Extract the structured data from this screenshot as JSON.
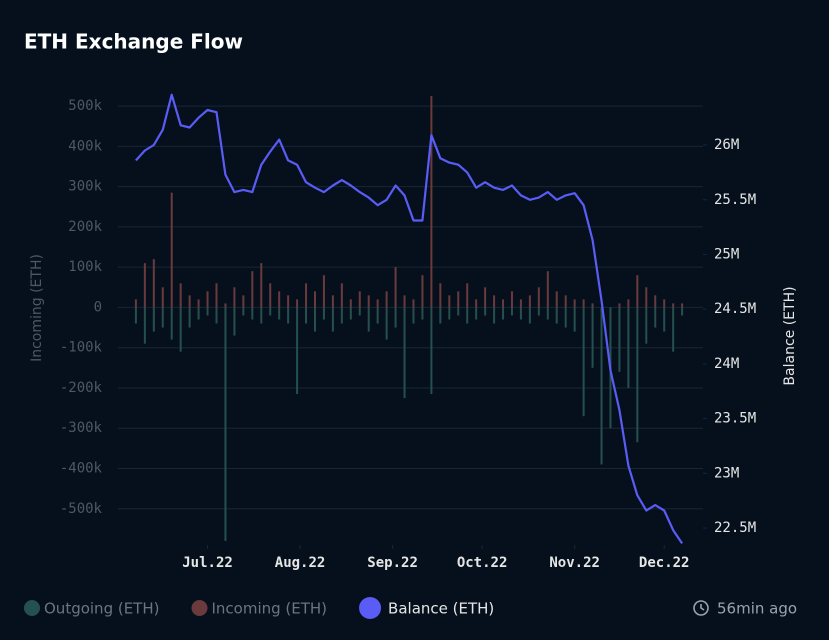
{
  "chart_data": {
    "type": "bar",
    "title": "ETH Exchange Flow",
    "y_label": "Incoming (ETH)",
    "y2_label": "Balance (ETH)",
    "updated": "56min ago",
    "x": [
      6,
      9,
      12,
      15,
      18,
      21,
      24,
      27,
      30,
      33,
      36,
      39,
      42,
      45,
      48,
      51,
      54,
      57,
      60,
      63,
      66,
      69,
      72,
      75,
      78,
      81,
      84,
      87,
      90,
      93,
      96,
      99,
      102,
      105,
      108,
      111,
      114,
      117,
      120,
      123,
      126,
      129,
      132,
      135,
      138,
      141,
      144,
      147,
      150,
      153,
      156,
      159,
      162,
      165,
      168,
      171,
      174,
      177,
      180,
      183,
      186,
      189
    ],
    "xlim": [
      0,
      196
    ],
    "xticks": [
      {
        "value": 30,
        "label": "Jul.22"
      },
      {
        "value": 61,
        "label": "Aug.22"
      },
      {
        "value": 92,
        "label": "Sep.22"
      },
      {
        "value": 122,
        "label": "Oct.22"
      },
      {
        "value": 153,
        "label": "Nov.22"
      },
      {
        "value": 183,
        "label": "Dec.22"
      }
    ],
    "ylim": [
      -590000,
      540000
    ],
    "yticks": [
      {
        "value": -500000,
        "label": "-500k"
      },
      {
        "value": -400000,
        "label": "-400k"
      },
      {
        "value": -300000,
        "label": "-300k"
      },
      {
        "value": -200000,
        "label": "-200k"
      },
      {
        "value": -100000,
        "label": "-100k"
      },
      0,
      {
        "value": 100000,
        "label": "100k"
      },
      {
        "value": 200000,
        "label": "200k"
      },
      {
        "value": 300000,
        "label": "300k"
      },
      {
        "value": 400000,
        "label": "400k"
      },
      {
        "value": 500000,
        "label": "500k"
      }
    ],
    "y2lim": [
      22345000,
      26503000
    ],
    "y2ticks": [
      {
        "value": 22500000,
        "label": "22.5M"
      },
      {
        "value": 23000000,
        "label": "23M"
      },
      {
        "value": 23500000,
        "label": "23.5M"
      },
      {
        "value": 24000000,
        "label": "24M"
      },
      {
        "value": 24500000,
        "label": "24.5M"
      },
      {
        "value": 25000000,
        "label": "25M"
      },
      {
        "value": 25500000,
        "label": "25.5M"
      },
      {
        "value": 26000000,
        "label": "26M"
      }
    ],
    "grid": true,
    "series": [
      {
        "name": "Outgoing (ETH)",
        "type": "bar",
        "color": "#24504f",
        "values": [
          -40000,
          -90000,
          -60000,
          -50000,
          -80000,
          -110000,
          -50000,
          -30000,
          -20000,
          -40000,
          -580000,
          -70000,
          -20000,
          -30000,
          -40000,
          -20000,
          -30000,
          -40000,
          -215000,
          -40000,
          -60000,
          -30000,
          -60000,
          -40000,
          -30000,
          -20000,
          -60000,
          -40000,
          -80000,
          -50000,
          -225000,
          -40000,
          -30000,
          -215000,
          -40000,
          -30000,
          -20000,
          -40000,
          -30000,
          -20000,
          -40000,
          -30000,
          -20000,
          -30000,
          -40000,
          -20000,
          -30000,
          -40000,
          -50000,
          -60000,
          -270000,
          -150000,
          -390000,
          -300000,
          -160000,
          -200000,
          -335000,
          -90000,
          -50000,
          -60000,
          -110000,
          -20000
        ]
      },
      {
        "name": "Incoming (ETH)",
        "type": "bar",
        "color": "#6a3a3c",
        "values": [
          20000,
          110000,
          120000,
          50000,
          285000,
          60000,
          30000,
          20000,
          40000,
          60000,
          10000,
          50000,
          30000,
          90000,
          110000,
          60000,
          40000,
          30000,
          20000,
          60000,
          40000,
          80000,
          30000,
          60000,
          20000,
          40000,
          30000,
          20000,
          40000,
          100000,
          30000,
          20000,
          80000,
          525000,
          60000,
          30000,
          40000,
          60000,
          20000,
          50000,
          30000,
          20000,
          40000,
          20000,
          30000,
          50000,
          90000,
          40000,
          30000,
          20000,
          20000,
          10000,
          0,
          0,
          10000,
          20000,
          80000,
          50000,
          30000,
          20000,
          10000,
          10000
        ]
      },
      {
        "name": "Balance (ETH)",
        "type": "line",
        "axis": "y2",
        "color": "#5a5cf6",
        "values": [
          25860000,
          25950000,
          26000000,
          26140000,
          26460000,
          26180000,
          26160000,
          26250000,
          26320000,
          26300000,
          25730000,
          25570000,
          25590000,
          25570000,
          25820000,
          25940000,
          26050000,
          25860000,
          25820000,
          25660000,
          25610000,
          25570000,
          25630000,
          25680000,
          25630000,
          25570000,
          25520000,
          25450000,
          25500000,
          25630000,
          25540000,
          25310000,
          25310000,
          26090000,
          25880000,
          25840000,
          25820000,
          25750000,
          25610000,
          25660000,
          25610000,
          25590000,
          25630000,
          25540000,
          25500000,
          25520000,
          25570000,
          25500000,
          25540000,
          25560000,
          25450000,
          25130000,
          24580000,
          23940000,
          23580000,
          23070000,
          22800000,
          22660000,
          22710000,
          22660000,
          22480000,
          22360000
        ]
      }
    ]
  }
}
